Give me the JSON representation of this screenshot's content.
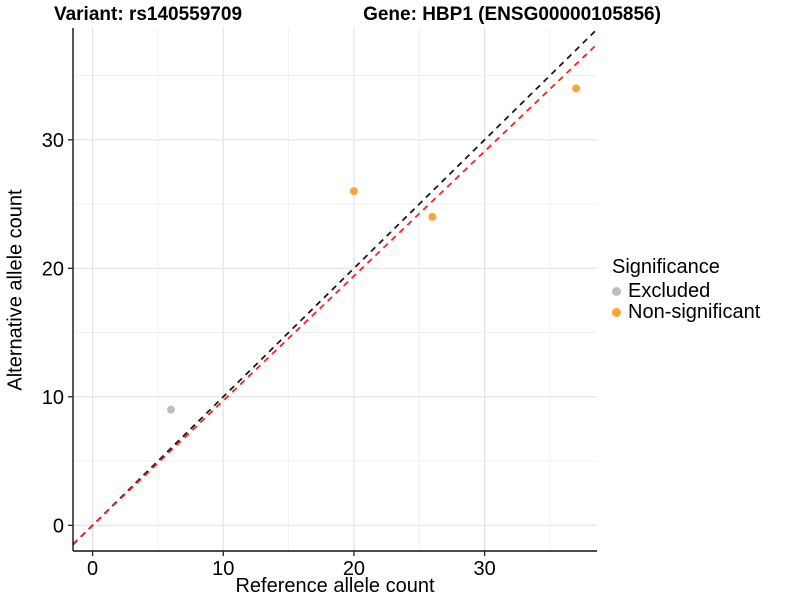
{
  "titles": {
    "variant": "Variant: rs140559709",
    "gene": "Gene: HBP1 (ENSG00000105856)"
  },
  "chart_data": {
    "type": "scatter",
    "title_left": "Variant: rs140559709",
    "title_right": "Gene: HBP1 (ENSG00000105856)",
    "xlabel": "Reference allele count",
    "ylabel": "Alternative allele count",
    "xlim": [
      -1.5,
      38.6
    ],
    "ylim": [
      -2.0,
      38.7
    ],
    "x_ticks": [
      0,
      10,
      20,
      30
    ],
    "y_ticks": [
      0,
      10,
      20,
      30
    ],
    "x_minor_ticks": [
      5,
      15,
      25,
      35
    ],
    "y_minor_ticks": [
      5,
      15,
      25,
      35
    ],
    "grid": true,
    "colors": {
      "major_grid": "#e4e4e4",
      "minor_grid": "#f1f1f1",
      "axis_line": "#111111",
      "tick_mark": "#222222"
    },
    "series": [
      {
        "name": "Excluded",
        "color": "#bebebe",
        "points": [
          {
            "x": 6,
            "y": 9
          }
        ]
      },
      {
        "name": "Non-significant",
        "color": "#faa43a",
        "points": [
          {
            "x": 20,
            "y": 26
          },
          {
            "x": 26,
            "y": 24
          },
          {
            "x": 37,
            "y": 34
          }
        ]
      }
    ],
    "lines": [
      {
        "name": "identity-line",
        "color": "#1a1a1a",
        "slope": 1.0,
        "intercept": 0,
        "dash": "6,5"
      },
      {
        "name": "fit-line",
        "color": "#ff1f1f",
        "slope": 0.97,
        "intercept": 0,
        "dash": "6,5"
      }
    ],
    "legend": {
      "title": "Significance",
      "position": "right",
      "items": [
        {
          "label": "Excluded",
          "color": "#bebebe"
        },
        {
          "label": "Non-significant",
          "color": "#faa43a"
        }
      ]
    }
  }
}
